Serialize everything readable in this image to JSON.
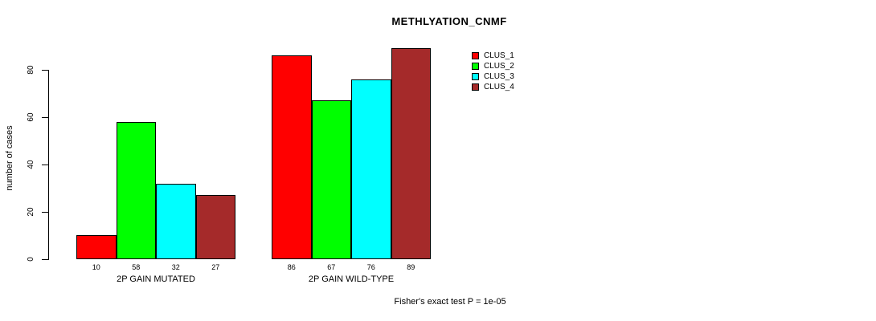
{
  "title": "METHLYATION_CNMF",
  "y_axis": {
    "label": "number of cases",
    "ticks": [
      0,
      20,
      40,
      60,
      80
    ]
  },
  "footer": "Fisher's exact test P = 1e-05",
  "legend": {
    "items": [
      {
        "label": "CLUS_1",
        "color": "#FF0000"
      },
      {
        "label": "CLUS_2",
        "color": "#00FF00"
      },
      {
        "label": "CLUS_3",
        "color": "#00FFFF"
      },
      {
        "label": "CLUS_4",
        "color": "#A52A2A"
      }
    ]
  },
  "chart_data": {
    "type": "bar",
    "title": "METHLYATION_CNMF",
    "xlabel": "",
    "ylabel": "number of cases",
    "ylim": [
      0,
      89
    ],
    "grid": false,
    "legend_position": "top-right",
    "categories": [
      "2P GAIN MUTATED",
      "2P GAIN WILD-TYPE"
    ],
    "series": [
      {
        "name": "CLUS_1",
        "color": "#FF0000",
        "values": [
          10,
          86
        ]
      },
      {
        "name": "CLUS_2",
        "color": "#00FF00",
        "values": [
          58,
          67
        ]
      },
      {
        "name": "CLUS_3",
        "color": "#00FFFF",
        "values": [
          32,
          76
        ]
      },
      {
        "name": "CLUS_4",
        "color": "#A52A2A",
        "values": [
          27,
          89
        ]
      }
    ],
    "bar_value_labels": [
      [
        10,
        58,
        32,
        27
      ],
      [
        86,
        67,
        76,
        89
      ]
    ],
    "annotation": "Fisher's exact test P = 1e-05"
  }
}
